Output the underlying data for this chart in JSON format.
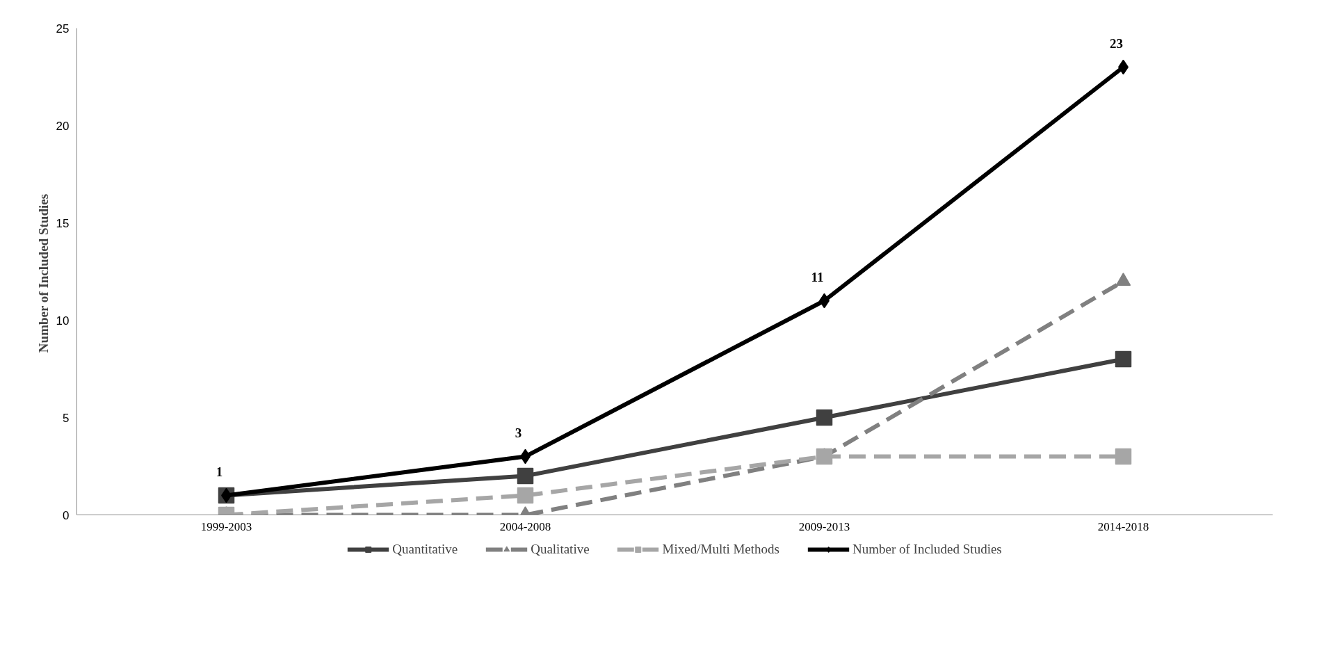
{
  "chart_data": {
    "type": "line",
    "ylabel": "Number of  Included Studies",
    "categories": [
      "1999-2003",
      "2004-2008",
      "2009-2013",
      "2014-2018"
    ],
    "series": [
      {
        "name": "Quantitative",
        "color": "#404040",
        "values": [
          1,
          2,
          5,
          8
        ],
        "marker": "square",
        "line_style": "solid"
      },
      {
        "name": "Qualitative",
        "color": "#808080",
        "values": [
          0,
          0,
          3,
          12
        ],
        "marker": "triangle",
        "line_style": "dashed"
      },
      {
        "name": "Mixed/Multi Methods",
        "color": "#a6a6a6",
        "values": [
          0,
          1,
          3,
          3
        ],
        "marker": "square",
        "line_style": "dashed"
      },
      {
        "name": "Number of Included Studies",
        "color": "#000000",
        "values": [
          1,
          3,
          11,
          23
        ],
        "marker": "diamond",
        "line_style": "solid",
        "value_labels": [
          "1",
          "3",
          "11",
          "23"
        ]
      }
    ],
    "ylim": [
      0,
      25
    ],
    "yticks": [
      0,
      5,
      10,
      15,
      20,
      25
    ],
    "grid": false,
    "legend": "bottom"
  }
}
